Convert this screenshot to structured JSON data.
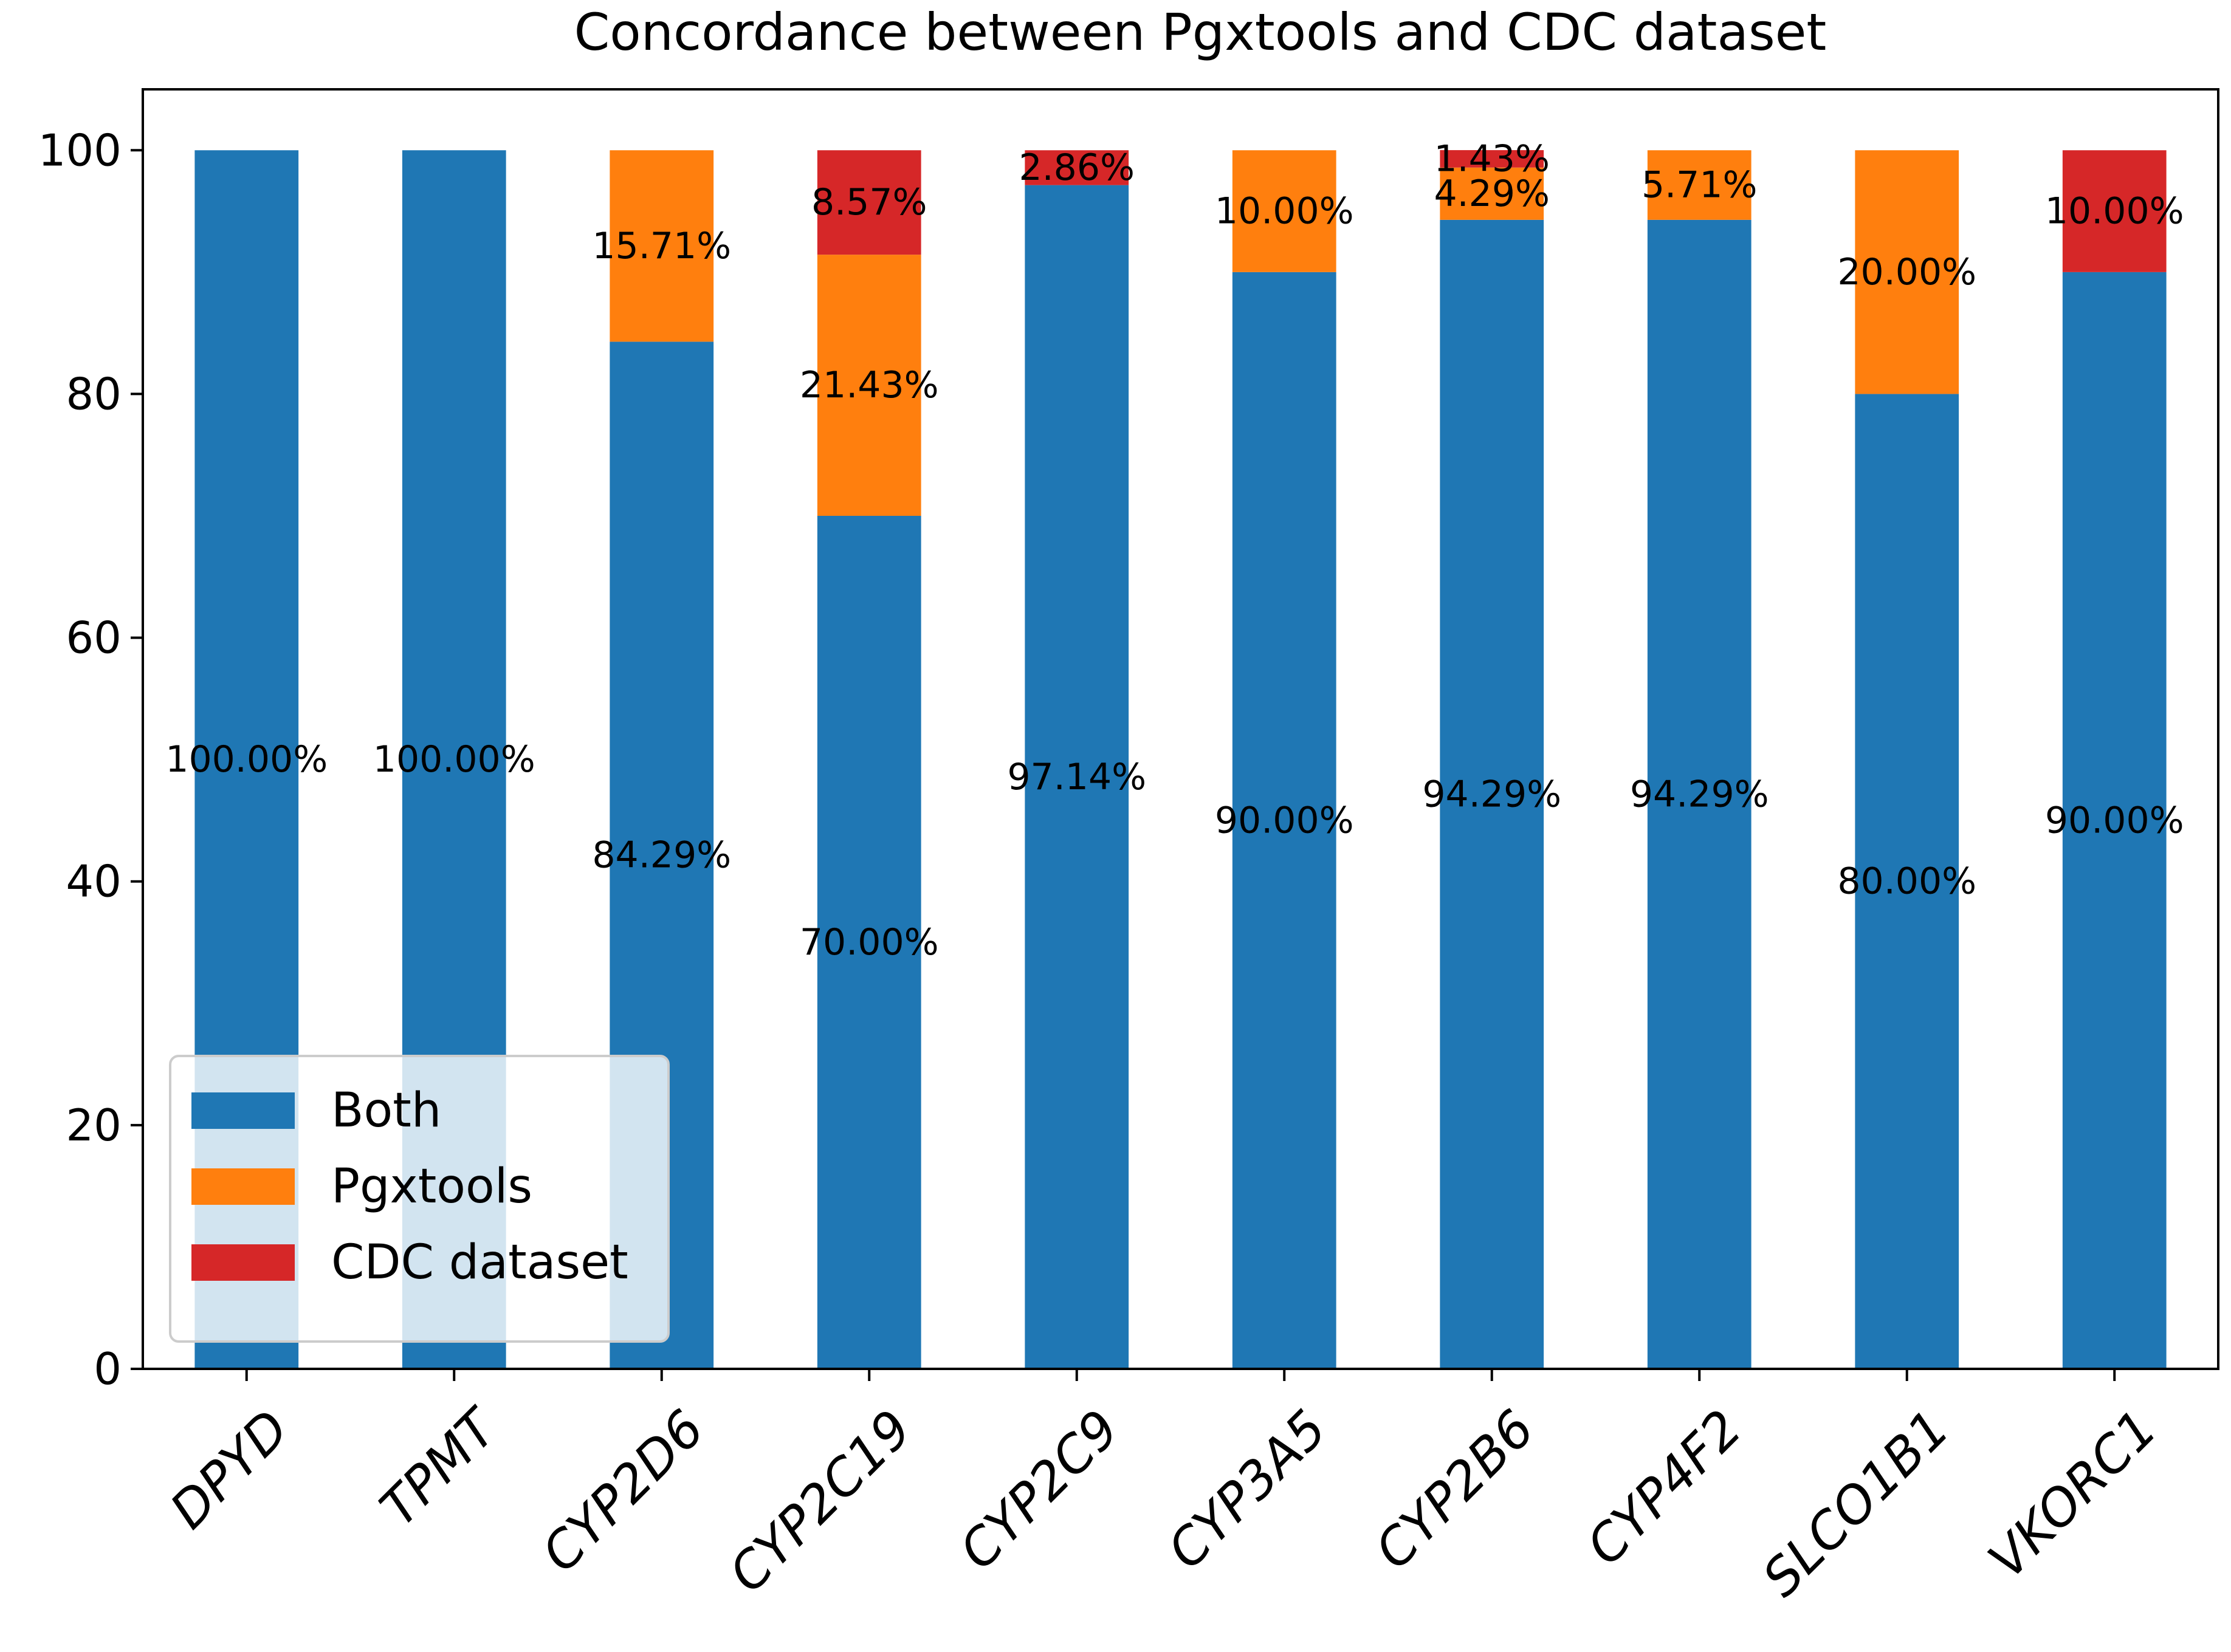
{
  "chart_data": {
    "type": "bar",
    "stacked": true,
    "title": "Concordance between Pgxtools and CDC dataset",
    "xlabel": "",
    "ylabel": "",
    "ylim": [
      0,
      105
    ],
    "yticks": [
      0,
      20,
      40,
      60,
      80,
      100
    ],
    "grid": false,
    "legend_position": "lower-left",
    "categories": [
      "DPYD",
      "TPMT",
      "CYP2D6",
      "CYP2C19",
      "CYP2C9",
      "CYP3A5",
      "CYP2B6",
      "CYP4F2",
      "SLCO1B1",
      "VKORC1"
    ],
    "series": [
      {
        "name": "Both",
        "color": "#1f77b4",
        "values": [
          100.0,
          100.0,
          84.29,
          70.0,
          97.14,
          90.0,
          94.29,
          94.29,
          80.0,
          90.0
        ],
        "labels": [
          "100.00%",
          "100.00%",
          "84.29%",
          "70.00%",
          "97.14%",
          "90.00%",
          "94.29%",
          "94.29%",
          "80.00%",
          "90.00%"
        ]
      },
      {
        "name": "Pgxtools",
        "color": "#ff7f0e",
        "values": [
          0,
          0,
          15.71,
          21.43,
          0,
          10.0,
          4.29,
          5.71,
          20.0,
          0
        ],
        "labels": [
          "",
          "",
          "15.71%",
          "21.43%",
          "",
          "10.00%",
          "4.29%",
          "5.71%",
          "20.00%",
          ""
        ]
      },
      {
        "name": "CDC dataset",
        "color": "#d62728",
        "values": [
          0,
          0,
          0,
          8.57,
          2.86,
          0,
          1.43,
          0,
          0,
          10.0
        ],
        "labels": [
          "",
          "",
          "",
          "8.57%",
          "2.86%",
          "",
          "1.43%",
          "",
          "",
          "10.00%"
        ]
      }
    ]
  }
}
